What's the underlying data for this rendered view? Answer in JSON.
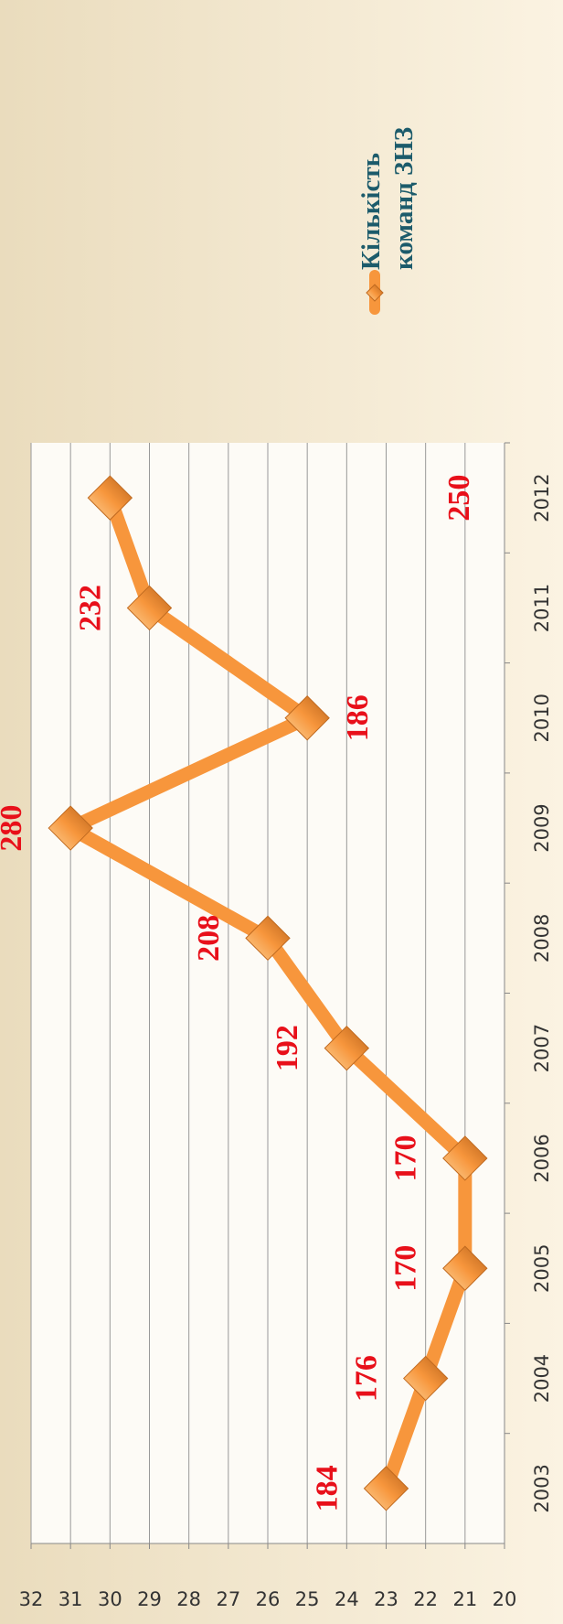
{
  "chart_data": {
    "type": "line",
    "categories": [
      "2003",
      "2004",
      "2005",
      "2006",
      "2007",
      "2008",
      "2009",
      "2010",
      "2011",
      "2012"
    ],
    "series": [
      {
        "name": "Кількість команд ЗНЗ",
        "color": "#f7963c",
        "values": [
          23,
          22,
          21,
          21,
          24,
          26,
          31,
          25,
          29,
          30
        ]
      }
    ],
    "annotations": [
      "184",
      "176",
      "170",
      "170",
      "192",
      "208",
      "280",
      "186",
      "232",
      "250"
    ],
    "ylim": [
      20,
      32
    ],
    "yticks": [
      20,
      21,
      22,
      23,
      24,
      25,
      26,
      27,
      28,
      29,
      30,
      31,
      32
    ],
    "grid": true,
    "legend": "right"
  }
}
